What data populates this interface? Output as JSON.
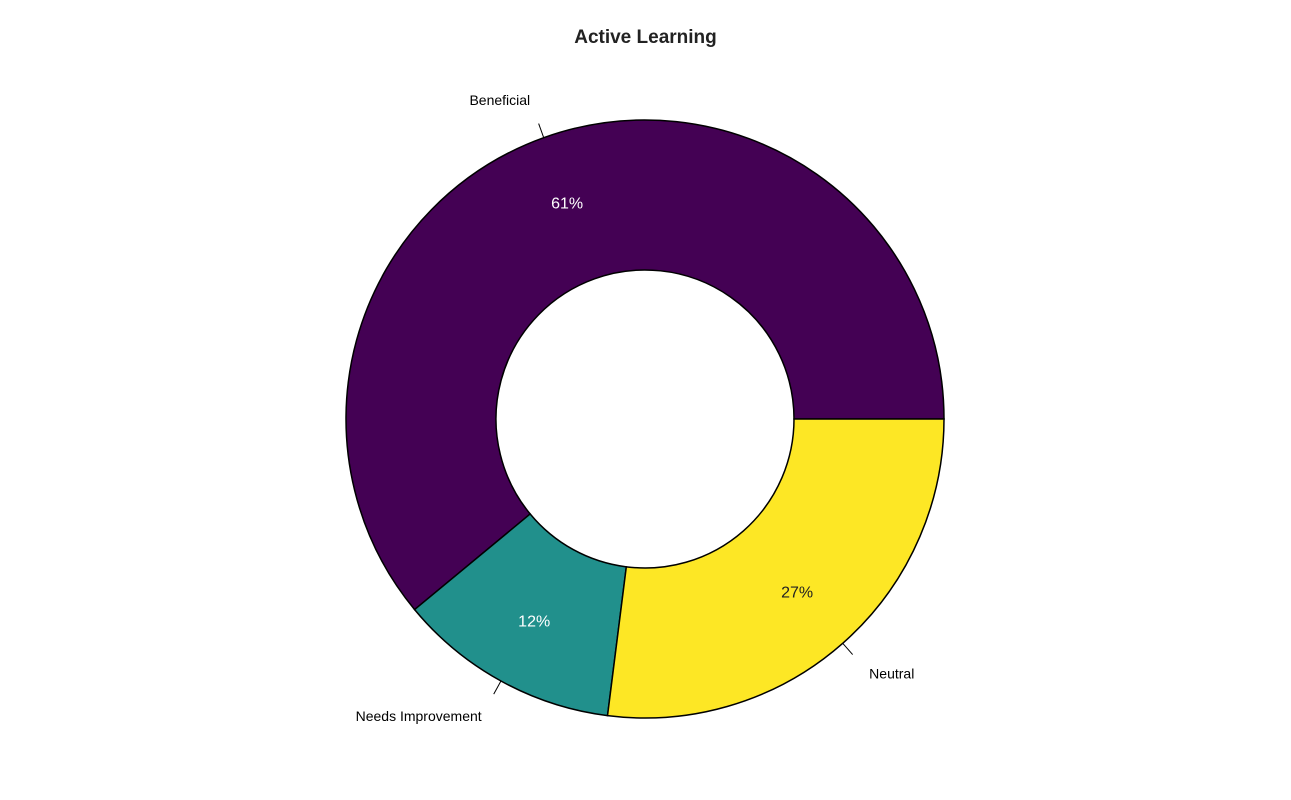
{
  "chart_data": {
    "type": "pie",
    "style": "donut",
    "title": "Active Learning",
    "slices": [
      {
        "label": "Beneficial",
        "value": 61,
        "pct_label": "61%",
        "color": "#440154",
        "pct_color": "#ffffff"
      },
      {
        "label": "Needs Improvement",
        "value": 12,
        "pct_label": "12%",
        "color": "#21908C",
        "pct_color": "#ffffff"
      },
      {
        "label": "Neutral",
        "value": 27,
        "pct_label": "27%",
        "color": "#FDE725",
        "pct_color": "#222222"
      }
    ],
    "legend": "none"
  }
}
